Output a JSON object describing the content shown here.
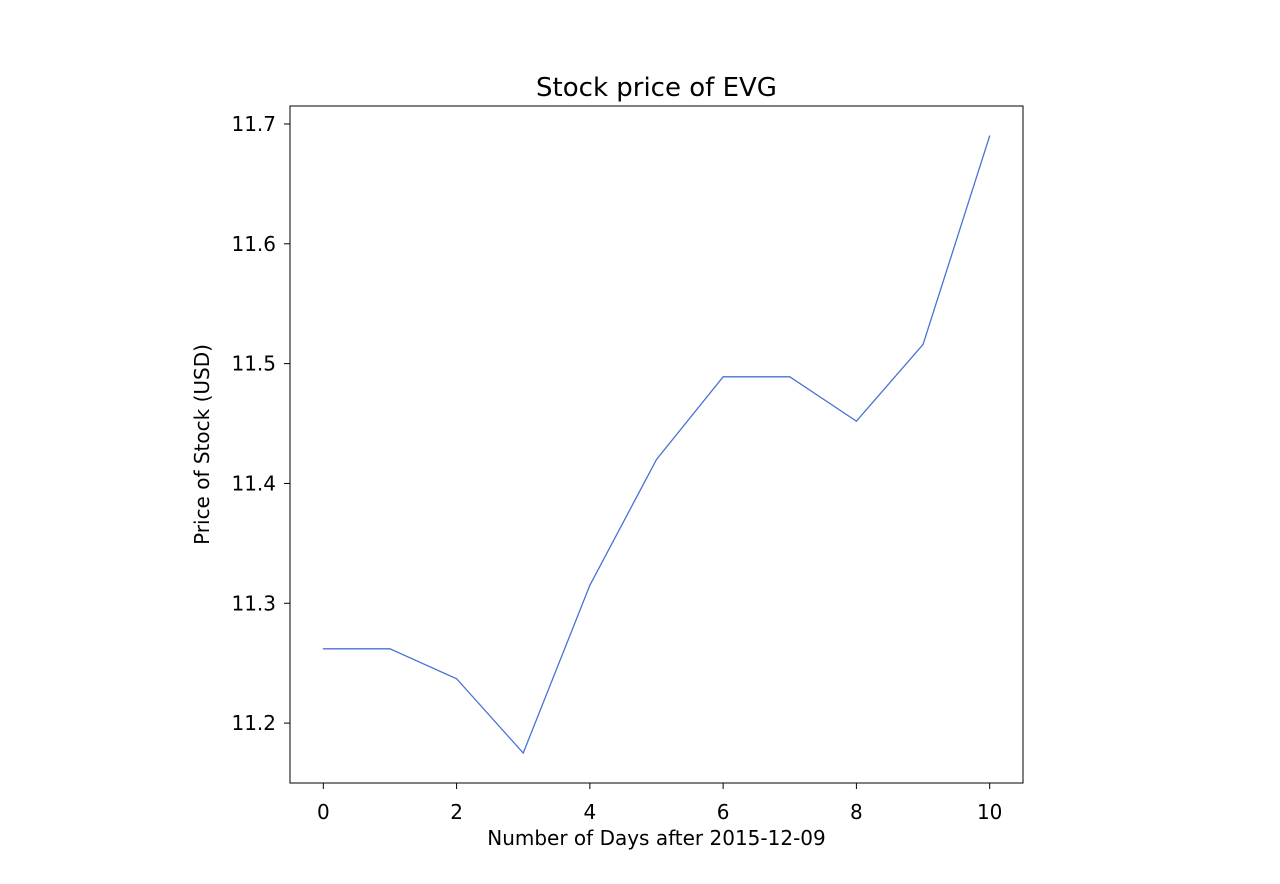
{
  "chart_data": {
    "type": "line",
    "title": "Stock price of EVG",
    "xlabel": "Number of Days after 2015-12-09",
    "ylabel": "Price of Stock (USD)",
    "x": [
      0,
      1,
      2,
      3,
      4,
      5,
      6,
      7,
      8,
      9,
      10
    ],
    "series": [
      {
        "values": [
          11.262,
          11.262,
          11.237,
          11.175,
          11.315,
          11.42,
          11.489,
          11.489,
          11.452,
          11.516,
          11.69
        ]
      }
    ],
    "xlim": [
      -0.5,
      10.5
    ],
    "ylim": [
      11.15,
      11.715
    ],
    "xticks": [
      0,
      2,
      4,
      6,
      8,
      10
    ],
    "xtick_labels": [
      "0",
      "2",
      "4",
      "6",
      "8",
      "10"
    ],
    "yticks": [
      11.2,
      11.3,
      11.4,
      11.5,
      11.6,
      11.7
    ],
    "ytick_labels": [
      "11.2",
      "11.3",
      "11.4",
      "11.5",
      "11.6",
      "11.7"
    ],
    "grid": false,
    "legend": "none",
    "line_color": "#4a72d4"
  }
}
